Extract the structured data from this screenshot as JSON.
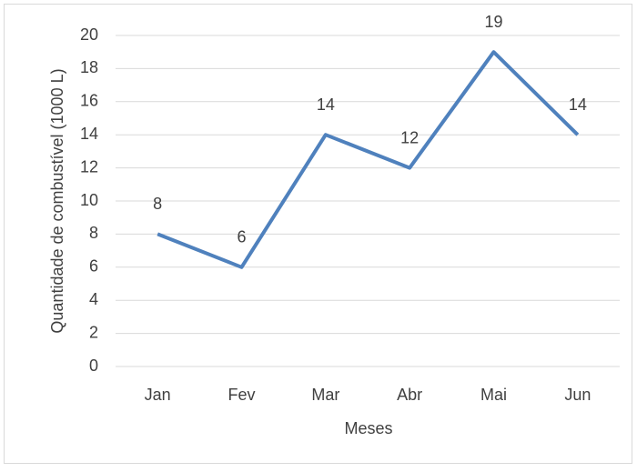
{
  "chart_data": {
    "type": "line",
    "x_label": "Meses",
    "y_label": "Quantidade de combustível (1000 L)",
    "categories": [
      "Jan",
      "Fev",
      "Mar",
      "Abr",
      "Mai",
      "Jun"
    ],
    "values": [
      8,
      6,
      14,
      12,
      19,
      14
    ],
    "color": "#4f81bd",
    "ylim": [
      0,
      20
    ],
    "yticks": [
      0,
      2,
      4,
      6,
      8,
      10,
      12,
      14,
      16,
      18,
      20
    ],
    "grid": true,
    "data_labels": true
  }
}
